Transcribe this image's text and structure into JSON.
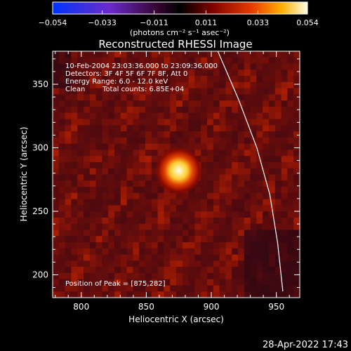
{
  "colorbar": {
    "ticks": [
      "−0.054",
      "−0.033",
      "−0.011",
      "0.011",
      "0.033",
      "0.054"
    ],
    "unit_label": "(photons cm⁻² s⁻¹ asec⁻²)",
    "range": [
      -0.054,
      0.054
    ]
  },
  "chart_data": {
    "type": "heatmap",
    "title": "Reconstructed RHESSI Image",
    "xlabel": "Heliocentric X (arcsec)",
    "ylabel": "Heliocentric Y (arcsec)",
    "xlim": [
      778,
      968
    ],
    "ylim": [
      182,
      376
    ],
    "xticks": [
      800,
      850,
      900,
      950
    ],
    "yticks": [
      200,
      250,
      300,
      350
    ],
    "grid": false,
    "colormap": "red-temperature",
    "annotations": [
      "10-Feb-2004 23:03:36.000 to 23:09:36.000",
      "Detectors: 3F 4F 5F 6F 7F 8F, Att 0",
      "Energy Range: 6.0 - 12.0 keV",
      "Clean",
      "Total counts: 6.85E+04"
    ],
    "peak_text": "Position of Peak = [875,282]",
    "peak": {
      "x": 875,
      "y": 282,
      "value": 0.054
    },
    "limb": [
      {
        "x": 905,
        "y": 376
      },
      {
        "x": 921,
        "y": 338
      },
      {
        "x": 935,
        "y": 300
      },
      {
        "x": 945,
        "y": 263
      },
      {
        "x": 951,
        "y": 225
      },
      {
        "x": 955,
        "y": 187
      }
    ]
  },
  "timestamp": "28-Apr-2022 17:43"
}
